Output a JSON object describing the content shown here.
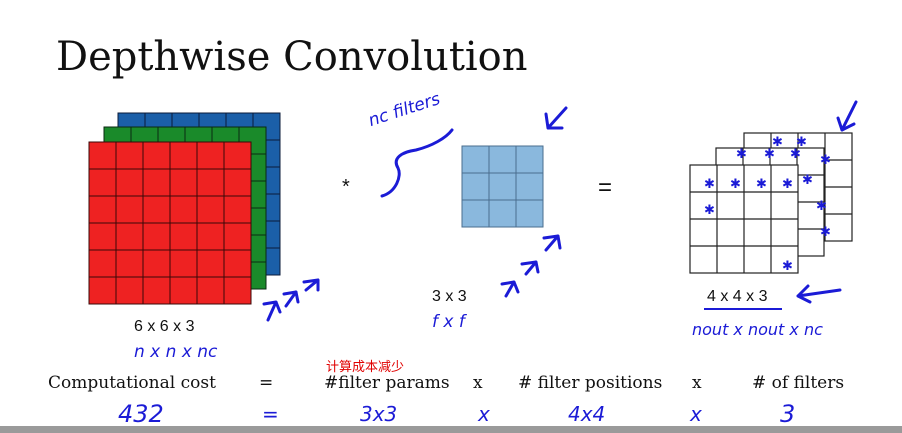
{
  "slide": {
    "title": "Depthwise Convolution",
    "input_label": "6 x 6 x 3",
    "filter_label": "3 x 3",
    "output_label": "4 x 4 x 3",
    "operator_star": "*",
    "operator_equals": "="
  },
  "annotations": {
    "nc_filters": "nc filters",
    "input_dims": "n x n x nc",
    "filter_dims": "f x f",
    "output_dims": "nout x nout x nc"
  },
  "overlay_text": "计算成本减少",
  "cost_row": {
    "label": "Computational cost",
    "eq": "=",
    "filter_params": "#filter params",
    "times1": "x",
    "filter_positions": "# filter positions",
    "times2": "x",
    "num_filters": "# of filters"
  },
  "handwritten_row": {
    "total": "432",
    "eq": "=",
    "params": "3x3",
    "times1": "x",
    "positions": "4x4",
    "times2": "x",
    "filters": "3"
  },
  "colors": {
    "red": "#ee2222",
    "green": "#1a8a2a",
    "blue": "#1b5fa8",
    "filter_fill": "#8ab8dd",
    "ink": "#1b1bd6"
  }
}
